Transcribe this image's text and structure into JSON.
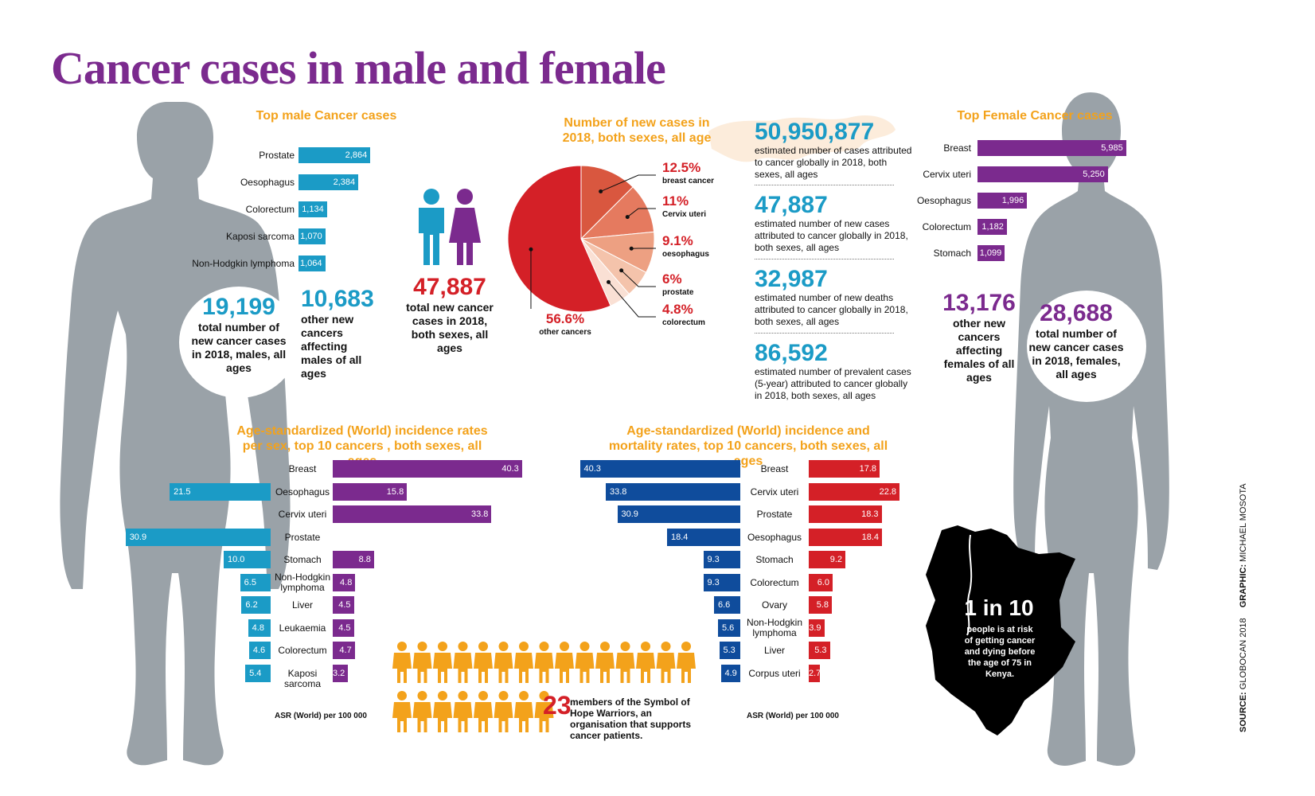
{
  "title": "Cancer cases in male and female",
  "colors": {
    "male": "#1b9bc6",
    "female": "#7b2a8e",
    "red": "#d42027",
    "navy": "#0f4c9c",
    "orange": "#f3a21b",
    "body": "#9aa2a8"
  },
  "male_top": {
    "title": "Top male Cancer cases",
    "total_value": "19,199",
    "total_text": "total number of new cancer cases in 2018, males, all ages",
    "other_value": "10,683",
    "other_text": "other new cancers affecting males of all ages"
  },
  "center": {
    "total_value": "47,887",
    "total_text": "total new cancer cases in 2018, both sexes, all ages"
  },
  "pie": {
    "title": "Number of new cases in 2018, both sexes, all age"
  },
  "stats": [
    {
      "value": "50,950,877",
      "text": "estimated number of cases attributed to cancer globally in 2018, both sexes, all ages"
    },
    {
      "value": "47,887",
      "text": "estimated number of new cases attributed to cancer globally in 2018, both sexes, all ages"
    },
    {
      "value": "32,987",
      "text": "estimated number of new deaths attributed to cancer globally in 2018, both sexes, all ages"
    },
    {
      "value": "86,592",
      "text": "estimated number of prevalent cases (5-year) attributed to cancer globally in 2018, both sexes, all ages"
    }
  ],
  "female_top": {
    "title": "Top Female Cancer cases",
    "other_value": "13,176",
    "other_text": "other new cancers affecting females of all ages",
    "total_value": "28,688",
    "total_text": "total number of new cancer cases in 2018, females, all ages"
  },
  "asr_left": {
    "title": "Age-standardized (World) incidence rates per sex, top 10 cancers , both sexes, all ages",
    "note": "ASR (World) per 100 000"
  },
  "asr_right": {
    "title": "Age-standardized (World) incidence and mortality rates, top 10 cancers, both sexes, all ages",
    "note": "ASR (World) per 100 000"
  },
  "hope": {
    "value": "23",
    "text": "members of the Symbol of Hope Warriors, an organisation that supports cancer patients."
  },
  "kenya": {
    "value": "1 in 10",
    "text": "people is at risk of getting cancer and dying before the age of 75 in Kenya."
  },
  "source": {
    "label1": "SOURCE:",
    "text1": "GLOBOCAN 2018",
    "label2": "GRAPHIC:",
    "text2": "MICHAEL MOSOTA"
  },
  "chart_data": [
    {
      "type": "bar",
      "title": "Top male Cancer cases",
      "categories": [
        "Prostate",
        "Oesophagus",
        "Colorectum",
        "Kaposi sarcoma",
        "Non-Hodgkin lymphoma"
      ],
      "values": [
        2864,
        2384,
        1134,
        1070,
        1064
      ],
      "labels": [
        "2,864",
        "2,384",
        "1,134",
        "1,070",
        "1,064"
      ]
    },
    {
      "type": "pie",
      "title": "Number of new cases in 2018, both sexes, all age",
      "slices": [
        {
          "value": 12.5,
          "pct": "12.5",
          "label": "breast cancer",
          "color": "#d9573f"
        },
        {
          "value": 11,
          "pct": "11",
          "label": "Cervix uteri",
          "color": "#e57a5f"
        },
        {
          "value": 9.1,
          "pct": "9.1",
          "label": "oesophagus",
          "color": "#eda082"
        },
        {
          "value": 6,
          "pct": "6",
          "label": "prostate",
          "color": "#f4c3ab"
        },
        {
          "value": 4.8,
          "pct": "4.8",
          "label": "colorectum",
          "color": "#fae0d4"
        },
        {
          "value": 56.6,
          "pct": "56.6",
          "label": "other cancers",
          "color": "#d42027"
        }
      ]
    },
    {
      "type": "bar",
      "title": "Top Female Cancer cases",
      "categories": [
        "Breast",
        "Cervix uteri",
        "Oesophagus",
        "Colorectum",
        "Stomach"
      ],
      "values": [
        5985,
        5250,
        1996,
        1182,
        1099
      ],
      "labels": [
        "5,985",
        "5,250",
        "1,996",
        "1,182",
        "1,099"
      ]
    },
    {
      "type": "bar",
      "title": "Age-standardized (World) incidence rates per sex, top 10 cancers , both sexes, all ages",
      "categories": [
        "Breast",
        "Oesophagus",
        "Cervix uteri",
        "Prostate",
        "Stomach",
        "Non-Hodgkin lymphoma",
        "Liver",
        "Leukaemia",
        "Colorectum",
        "Kaposi sarcoma"
      ],
      "series": [
        {
          "values": [
            null,
            21.5,
            null,
            30.9,
            10.0,
            6.5,
            6.2,
            4.8,
            4.6,
            5.4
          ],
          "labels": [
            "",
            "21.5",
            "",
            "30.9",
            "10.0",
            "6.5",
            "6.2",
            "4.8",
            "4.6",
            "5.4"
          ]
        },
        {
          "values": [
            40.3,
            15.8,
            33.8,
            null,
            8.8,
            4.8,
            4.5,
            4.5,
            4.7,
            3.2
          ],
          "labels": [
            "40.3",
            "15.8",
            "33.8",
            "",
            "8.8",
            "4.8",
            "4.5",
            "4.5",
            "4.7",
            "3.2"
          ]
        }
      ],
      "xlabel": "ASR (World) per 100 000"
    },
    {
      "type": "bar",
      "title": "Age-standardized (World) incidence and mortality rates, top 10 cancers, both sexes, all ages",
      "categories": [
        "Breast",
        "Cervix uteri",
        "Prostate",
        "Oesophagus",
        "Stomach",
        "Colorectum",
        "Ovary",
        "Non-Hodgkin lymphoma",
        "Liver",
        "Corpus uteri"
      ],
      "series": [
        {
          "values": [
            40.3,
            33.8,
            30.9,
            18.4,
            9.3,
            9.3,
            6.6,
            5.6,
            5.3,
            4.9
          ],
          "labels": [
            "40.3",
            "33.8",
            "30.9",
            "18.4",
            "9.3",
            "9.3",
            "6.6",
            "5.6",
            "5.3",
            "4.9"
          ]
        },
        {
          "values": [
            17.8,
            22.8,
            18.3,
            18.4,
            9.2,
            6.0,
            5.8,
            3.9,
            5.3,
            2.7
          ],
          "labels": [
            "17.8",
            "22.8",
            "18.3",
            "18.4",
            "9.2",
            "6.0",
            "5.8",
            "3.9",
            "5.3",
            "2.7"
          ]
        }
      ],
      "xlabel": "ASR (World) per 100 000"
    }
  ]
}
